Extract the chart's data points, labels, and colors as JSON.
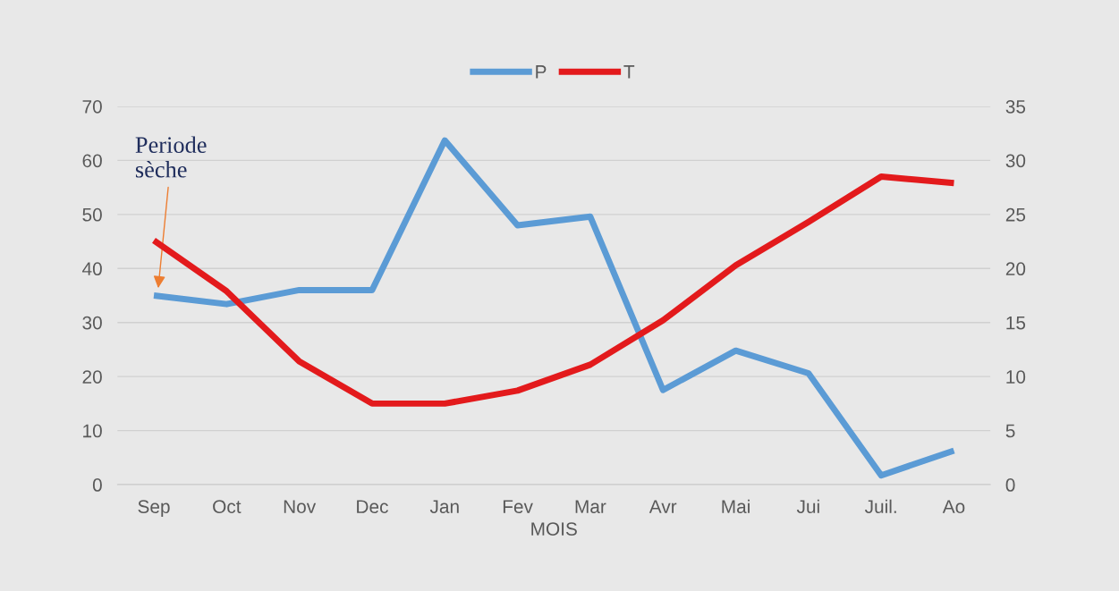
{
  "chart_data": {
    "type": "line",
    "xlabel": "MOIS",
    "categories": [
      "Sep",
      "Oct",
      "Nov",
      "Dec",
      "Jan",
      "Fev",
      "Mar",
      "Avr",
      "Mai",
      "Jui",
      "Juil.",
      "Ao"
    ],
    "series": [
      {
        "name": "P",
        "color": "#5b9bd5",
        "values": [
          35,
          33.4,
          36,
          36,
          63.7,
          48,
          49.6,
          17.5,
          24.8,
          20.6,
          1.7,
          6.3
        ]
      },
      {
        "name": "T",
        "color": "#e31a1c",
        "axis": "y2",
        "values": [
          22.6,
          17.9,
          11.4,
          7.5,
          7.5,
          8.7,
          11.1,
          15.2,
          20.3,
          24.3,
          28.5,
          27.9
        ]
      }
    ],
    "ylim": [
      0,
      70
    ],
    "yticks": [
      0,
      10,
      20,
      30,
      40,
      50,
      60,
      70
    ],
    "y2lim": [
      0,
      35
    ],
    "y2ticks": [
      0,
      5,
      10,
      15,
      20,
      25,
      30,
      35
    ],
    "annotations": [
      "Periode\nsèche"
    ],
    "grid": "y",
    "legend": "top",
    "marker": "none",
    "line_style": "solid"
  }
}
